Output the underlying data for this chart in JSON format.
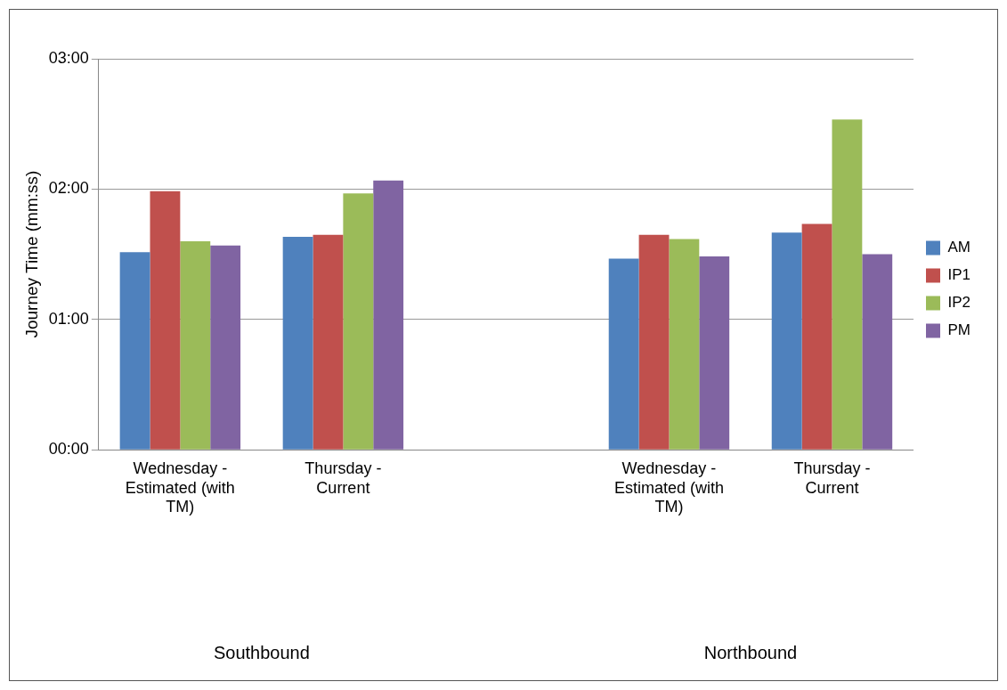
{
  "chart_data": {
    "type": "bar",
    "ylabel": "Journey Time (mm:ss)",
    "categories": [
      "Wednesday - Estimated (with TM)",
      "Thursday - Current",
      null,
      "Wednesday - Estimated (with TM)",
      "Thursday - Current"
    ],
    "series": [
      {
        "name": "AM",
        "color": "#4f81bd",
        "values": [
          91,
          98,
          null,
          88,
          100
        ]
      },
      {
        "name": "IP1",
        "color": "#c0504d",
        "values": [
          119,
          99,
          null,
          99,
          104
        ]
      },
      {
        "name": "IP2",
        "color": "#9bbb59",
        "values": [
          96,
          118,
          null,
          97,
          152
        ]
      },
      {
        "name": "PM",
        "color": "#8064a2",
        "values": [
          94,
          124,
          null,
          89,
          90
        ]
      }
    ],
    "ylim": [
      0,
      180
    ],
    "yticks": [
      {
        "value": 0,
        "label": "00:00"
      },
      {
        "value": 60,
        "label": "01:00"
      },
      {
        "value": 120,
        "label": "02:00"
      },
      {
        "value": 180,
        "label": "03:00"
      }
    ],
    "grid": "y",
    "legend": "right",
    "annotations": [
      "Southbound",
      "Northbound"
    ]
  }
}
